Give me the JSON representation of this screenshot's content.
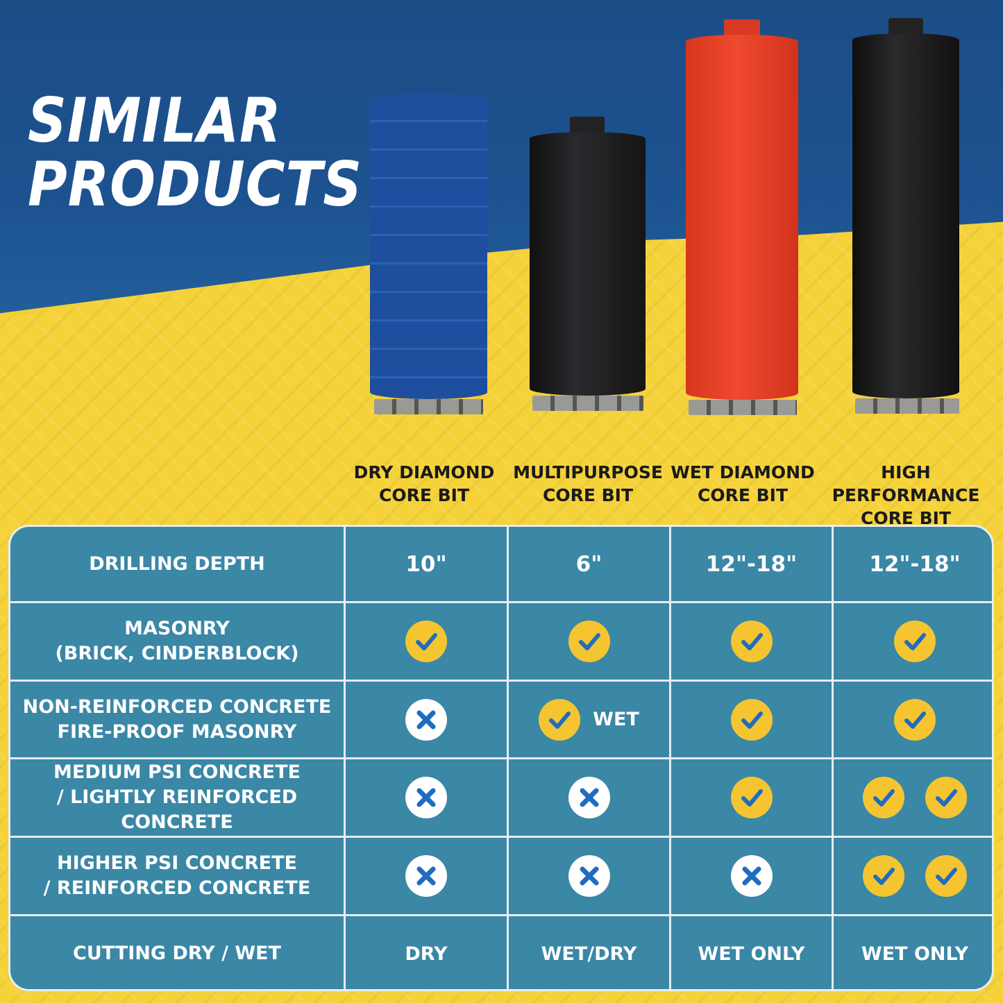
{
  "title": {
    "line1": "SIMILAR",
    "line2": "PRODUCTS"
  },
  "colors": {
    "table": "#3a87a6",
    "check_bg": "#f4c531",
    "mark": "#1f6cc0",
    "blue_bit": "#1e4f9e",
    "red_bit": "#e8402a",
    "black_bit": "#1c1c1e"
  },
  "products": [
    {
      "line1": "DRY DIAMOND",
      "line2": "CORE BIT"
    },
    {
      "line1": "MULTIPURPOSE",
      "line2": "CORE BIT"
    },
    {
      "line1": "WET DIAMOND",
      "line2": "CORE BIT"
    },
    {
      "line1": "HIGH PERFORMANCE",
      "line2": "CORE BIT"
    }
  ],
  "rows": [
    {
      "label": [
        "DRILLING DEPTH"
      ],
      "cells": [
        {
          "type": "value",
          "text": "10\""
        },
        {
          "type": "value",
          "text": "6\""
        },
        {
          "type": "value",
          "text": "12\"-18\""
        },
        {
          "type": "value",
          "text": "12\"-18\""
        }
      ]
    },
    {
      "label": [
        "MASONRY",
        "(BRICK, CINDERBLOCK)"
      ],
      "cells": [
        {
          "type": "check"
        },
        {
          "type": "check"
        },
        {
          "type": "check"
        },
        {
          "type": "check"
        }
      ]
    },
    {
      "label": [
        "NON-REINFORCED CONCRETE",
        "FIRE-PROOF MASONRY"
      ],
      "cells": [
        {
          "type": "cross"
        },
        {
          "type": "check",
          "note": "WET"
        },
        {
          "type": "check"
        },
        {
          "type": "check"
        }
      ]
    },
    {
      "label": [
        "MEDIUM PSI CONCRETE",
        "/ LIGHTLY REINFORCED CONCRETE"
      ],
      "cells": [
        {
          "type": "cross"
        },
        {
          "type": "cross"
        },
        {
          "type": "check"
        },
        {
          "type": "check2"
        }
      ]
    },
    {
      "label": [
        "HIGHER PSI CONCRETE",
        "/ REINFORCED CONCRETE"
      ],
      "cells": [
        {
          "type": "cross"
        },
        {
          "type": "cross"
        },
        {
          "type": "cross"
        },
        {
          "type": "check2"
        }
      ]
    },
    {
      "label": [
        "CUTTING DRY / WET"
      ],
      "cells": [
        {
          "type": "text",
          "text": "DRY"
        },
        {
          "type": "text",
          "text": "WET/DRY"
        },
        {
          "type": "text",
          "text": "WET ONLY"
        },
        {
          "type": "text",
          "text": "WET ONLY"
        }
      ]
    }
  ]
}
